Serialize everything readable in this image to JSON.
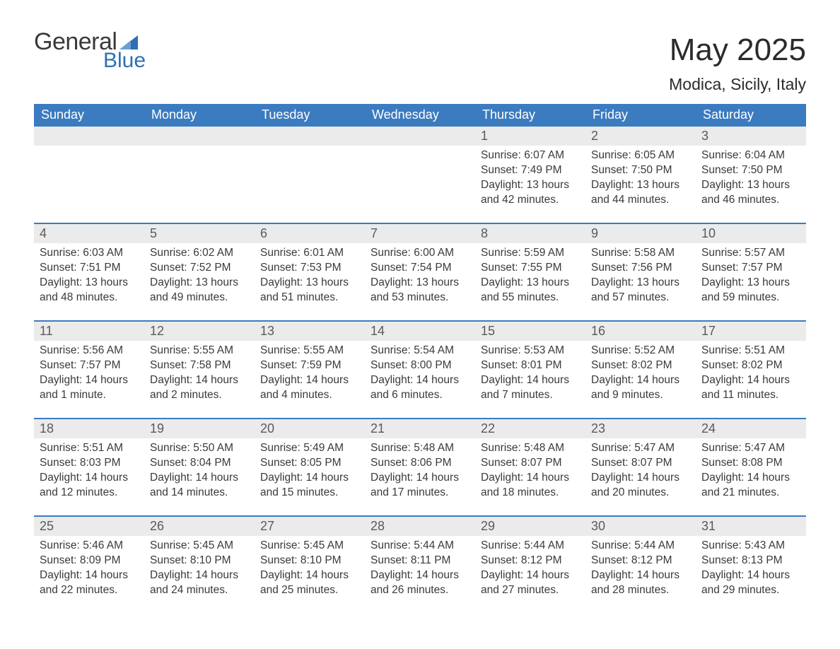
{
  "brand": {
    "word1": "General",
    "word2": "Blue",
    "word1_color": "#3a3a3a",
    "word2_color": "#2f6fb3",
    "triangle_color": "#2f6fb3"
  },
  "title": "May 2025",
  "location": "Modica, Sicily, Italy",
  "colors": {
    "header_bg": "#3b7bbf",
    "header_text": "#ffffff",
    "daynum_bg": "#ebebeb",
    "daynum_text": "#5a5a5a",
    "week_separator": "#3b7bbf",
    "body_text": "#3a3a3a",
    "page_bg": "#ffffff"
  },
  "weekdays": [
    "Sunday",
    "Monday",
    "Tuesday",
    "Wednesday",
    "Thursday",
    "Friday",
    "Saturday"
  ],
  "layout": {
    "columns": 7,
    "rows": 5,
    "first_weekday_index": 4,
    "days_in_month": 31
  },
  "weeks": [
    [
      null,
      null,
      null,
      null,
      {
        "n": "1",
        "sunrise": "6:07 AM",
        "sunset": "7:49 PM",
        "daylight": "13 hours and 42 minutes."
      },
      {
        "n": "2",
        "sunrise": "6:05 AM",
        "sunset": "7:50 PM",
        "daylight": "13 hours and 44 minutes."
      },
      {
        "n": "3",
        "sunrise": "6:04 AM",
        "sunset": "7:50 PM",
        "daylight": "13 hours and 46 minutes."
      }
    ],
    [
      {
        "n": "4",
        "sunrise": "6:03 AM",
        "sunset": "7:51 PM",
        "daylight": "13 hours and 48 minutes."
      },
      {
        "n": "5",
        "sunrise": "6:02 AM",
        "sunset": "7:52 PM",
        "daylight": "13 hours and 49 minutes."
      },
      {
        "n": "6",
        "sunrise": "6:01 AM",
        "sunset": "7:53 PM",
        "daylight": "13 hours and 51 minutes."
      },
      {
        "n": "7",
        "sunrise": "6:00 AM",
        "sunset": "7:54 PM",
        "daylight": "13 hours and 53 minutes."
      },
      {
        "n": "8",
        "sunrise": "5:59 AM",
        "sunset": "7:55 PM",
        "daylight": "13 hours and 55 minutes."
      },
      {
        "n": "9",
        "sunrise": "5:58 AM",
        "sunset": "7:56 PM",
        "daylight": "13 hours and 57 minutes."
      },
      {
        "n": "10",
        "sunrise": "5:57 AM",
        "sunset": "7:57 PM",
        "daylight": "13 hours and 59 minutes."
      }
    ],
    [
      {
        "n": "11",
        "sunrise": "5:56 AM",
        "sunset": "7:57 PM",
        "daylight": "14 hours and 1 minute."
      },
      {
        "n": "12",
        "sunrise": "5:55 AM",
        "sunset": "7:58 PM",
        "daylight": "14 hours and 2 minutes."
      },
      {
        "n": "13",
        "sunrise": "5:55 AM",
        "sunset": "7:59 PM",
        "daylight": "14 hours and 4 minutes."
      },
      {
        "n": "14",
        "sunrise": "5:54 AM",
        "sunset": "8:00 PM",
        "daylight": "14 hours and 6 minutes."
      },
      {
        "n": "15",
        "sunrise": "5:53 AM",
        "sunset": "8:01 PM",
        "daylight": "14 hours and 7 minutes."
      },
      {
        "n": "16",
        "sunrise": "5:52 AM",
        "sunset": "8:02 PM",
        "daylight": "14 hours and 9 minutes."
      },
      {
        "n": "17",
        "sunrise": "5:51 AM",
        "sunset": "8:02 PM",
        "daylight": "14 hours and 11 minutes."
      }
    ],
    [
      {
        "n": "18",
        "sunrise": "5:51 AM",
        "sunset": "8:03 PM",
        "daylight": "14 hours and 12 minutes."
      },
      {
        "n": "19",
        "sunrise": "5:50 AM",
        "sunset": "8:04 PM",
        "daylight": "14 hours and 14 minutes."
      },
      {
        "n": "20",
        "sunrise": "5:49 AM",
        "sunset": "8:05 PM",
        "daylight": "14 hours and 15 minutes."
      },
      {
        "n": "21",
        "sunrise": "5:48 AM",
        "sunset": "8:06 PM",
        "daylight": "14 hours and 17 minutes."
      },
      {
        "n": "22",
        "sunrise": "5:48 AM",
        "sunset": "8:07 PM",
        "daylight": "14 hours and 18 minutes."
      },
      {
        "n": "23",
        "sunrise": "5:47 AM",
        "sunset": "8:07 PM",
        "daylight": "14 hours and 20 minutes."
      },
      {
        "n": "24",
        "sunrise": "5:47 AM",
        "sunset": "8:08 PM",
        "daylight": "14 hours and 21 minutes."
      }
    ],
    [
      {
        "n": "25",
        "sunrise": "5:46 AM",
        "sunset": "8:09 PM",
        "daylight": "14 hours and 22 minutes."
      },
      {
        "n": "26",
        "sunrise": "5:45 AM",
        "sunset": "8:10 PM",
        "daylight": "14 hours and 24 minutes."
      },
      {
        "n": "27",
        "sunrise": "5:45 AM",
        "sunset": "8:10 PM",
        "daylight": "14 hours and 25 minutes."
      },
      {
        "n": "28",
        "sunrise": "5:44 AM",
        "sunset": "8:11 PM",
        "daylight": "14 hours and 26 minutes."
      },
      {
        "n": "29",
        "sunrise": "5:44 AM",
        "sunset": "8:12 PM",
        "daylight": "14 hours and 27 minutes."
      },
      {
        "n": "30",
        "sunrise": "5:44 AM",
        "sunset": "8:12 PM",
        "daylight": "14 hours and 28 minutes."
      },
      {
        "n": "31",
        "sunrise": "5:43 AM",
        "sunset": "8:13 PM",
        "daylight": "14 hours and 29 minutes."
      }
    ]
  ],
  "labels": {
    "sunrise": "Sunrise:",
    "sunset": "Sunset:",
    "daylight": "Daylight:"
  }
}
